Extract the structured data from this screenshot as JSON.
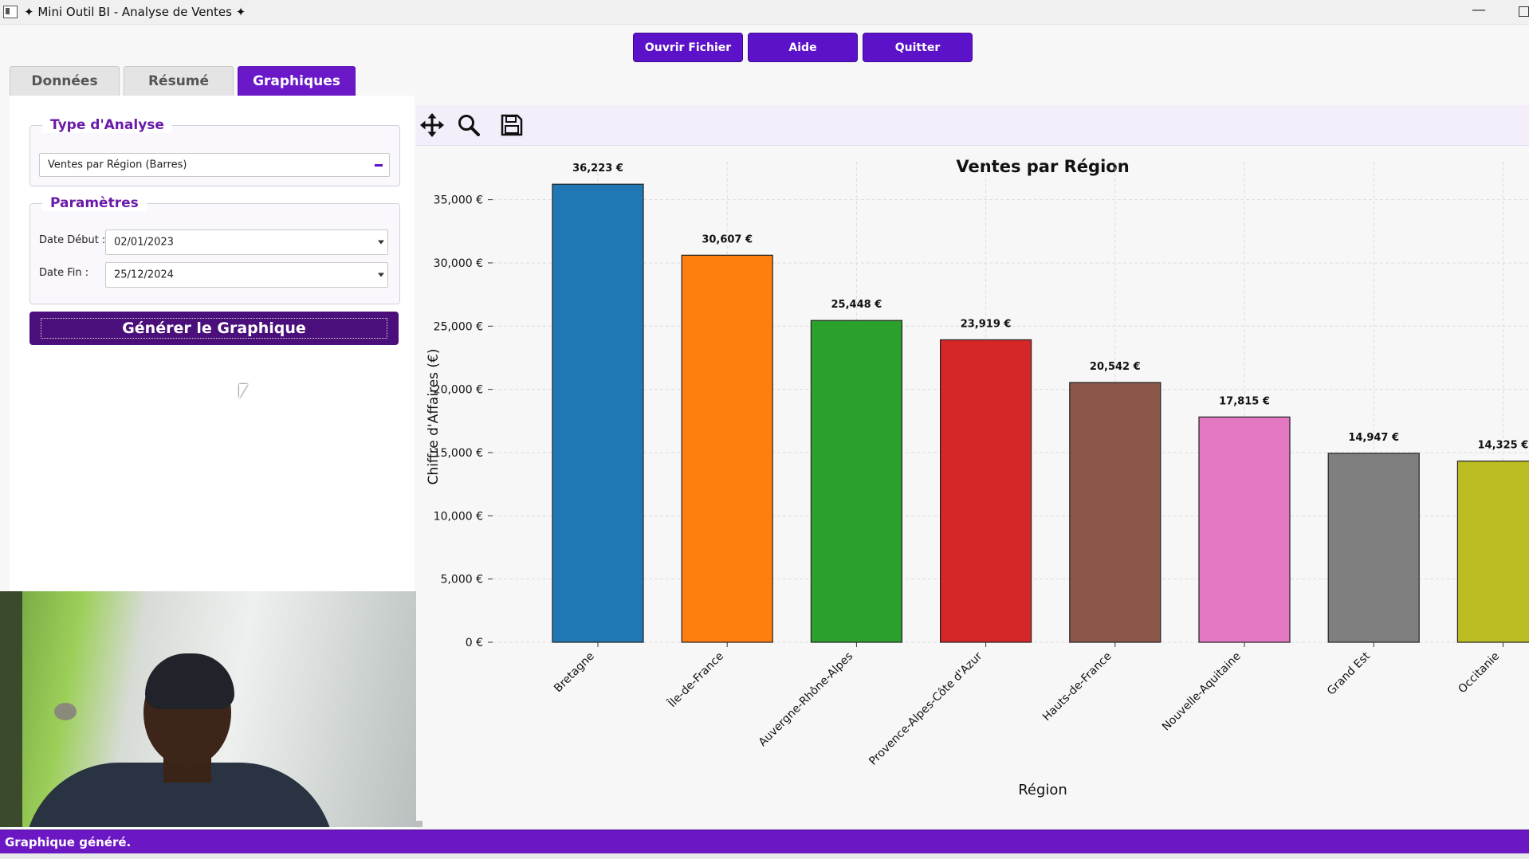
{
  "window": {
    "title": "Mini Outil BI - Analyse de Ventes"
  },
  "header_buttons": {
    "open": "Ouvrir Fichier",
    "help": "Aide",
    "quit": "Quitter"
  },
  "tabs": [
    {
      "label": "Données",
      "active": false
    },
    {
      "label": "Résumé",
      "active": false
    },
    {
      "label": "Graphiques",
      "active": true
    }
  ],
  "analysis": {
    "group_title": "Type d'Analyse",
    "selected": "Ventes par Région (Barres)"
  },
  "parameters": {
    "group_title": "Paramètres",
    "start_label": "Date Début :",
    "start_value": "02/01/2023",
    "end_label": "Date Fin :",
    "end_value": "25/12/2024"
  },
  "generate_button": "Générer le Graphique",
  "toolbar": {
    "icons": [
      "pan-icon",
      "zoom-icon",
      "save-icon"
    ]
  },
  "status": {
    "message": "Graphique généré."
  },
  "colors": {
    "accent": "#5b12c9",
    "status_bar": "#6b17c4",
    "group_title": "#6a1ba8"
  },
  "chart_data": {
    "type": "bar",
    "title": "Ventes par Région",
    "xlabel": "Région",
    "ylabel": "Chiffre d'Affaires (€)",
    "ylim": [
      0,
      38000
    ],
    "yticks": [
      "0 €",
      "5,000 €",
      "10,000 €",
      "15,000 €",
      "20,000 €",
      "25,000 €",
      "30,000 €",
      "35,000 €"
    ],
    "grid": true,
    "categories": [
      "Bretagne",
      "Île-de-France",
      "Auvergne-Rhône-Alpes",
      "Provence-Alpes-Côte d'Azur",
      "Hauts-de-France",
      "Nouvelle-Aquitaine",
      "Grand Est",
      "Occitanie"
    ],
    "values": [
      36223,
      30607,
      25448,
      23919,
      20542,
      17815,
      14947,
      14325
    ],
    "value_labels": [
      "36,223 €",
      "30,607 €",
      "25,448 €",
      "23,919 €",
      "20,542 €",
      "17,815 €",
      "14,947 €",
      "14,325 €"
    ],
    "bar_colors": [
      "#1f77b4",
      "#ff7f0e",
      "#2ca02c",
      "#d62728",
      "#8c564b",
      "#e377c2",
      "#7f7f7f",
      "#bcbd22"
    ]
  }
}
